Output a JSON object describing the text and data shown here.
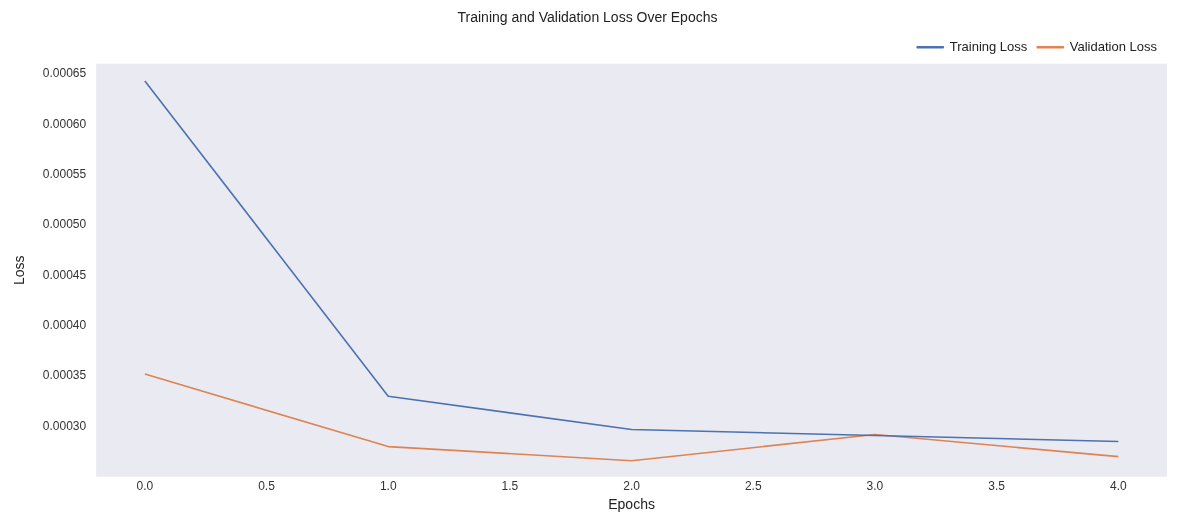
{
  "chart_data": {
    "type": "line",
    "title": "Training and Validation Loss Over Epochs",
    "xlabel": "Epochs",
    "ylabel": "Loss",
    "x": [
      0,
      1,
      2,
      3,
      4
    ],
    "series": [
      {
        "name": "Training Loss",
        "color": "#4c72b0",
        "values": [
          0.000643,
          0.00033,
          0.000297,
          0.000291,
          0.000285
        ]
      },
      {
        "name": "Validation Loss",
        "color": "#dd8452",
        "values": [
          0.000352,
          0.00028,
          0.000266,
          0.000292,
          0.00027
        ]
      }
    ],
    "xlim": [
      -0.2,
      4.2
    ],
    "xticks": [
      {
        "value": 0,
        "label": "0.0"
      },
      {
        "value": 0.5,
        "label": "0.5"
      },
      {
        "value": 1,
        "label": "1.0"
      },
      {
        "value": 1.5,
        "label": "1.5"
      },
      {
        "value": 2,
        "label": "2.0"
      },
      {
        "value": 2.5,
        "label": "2.5"
      },
      {
        "value": 3,
        "label": "3.0"
      },
      {
        "value": 3.5,
        "label": "3.5"
      },
      {
        "value": 4,
        "label": "4.0"
      }
    ],
    "ylim": [
      0.00025,
      0.00066
    ],
    "yticks": [
      {
        "value": 0.0003,
        "label": "0.00030"
      },
      {
        "value": 0.00035,
        "label": "0.00035"
      },
      {
        "value": 0.0004,
        "label": "0.00040"
      },
      {
        "value": 0.00045,
        "label": "0.00045"
      },
      {
        "value": 0.0005,
        "label": "0.00050"
      },
      {
        "value": 0.00055,
        "label": "0.00055"
      },
      {
        "value": 0.0006,
        "label": "0.00060"
      },
      {
        "value": 0.00065,
        "label": "0.00065"
      }
    ],
    "grid": false,
    "legend": "top right",
    "marker": "none",
    "line_style": "solid"
  }
}
